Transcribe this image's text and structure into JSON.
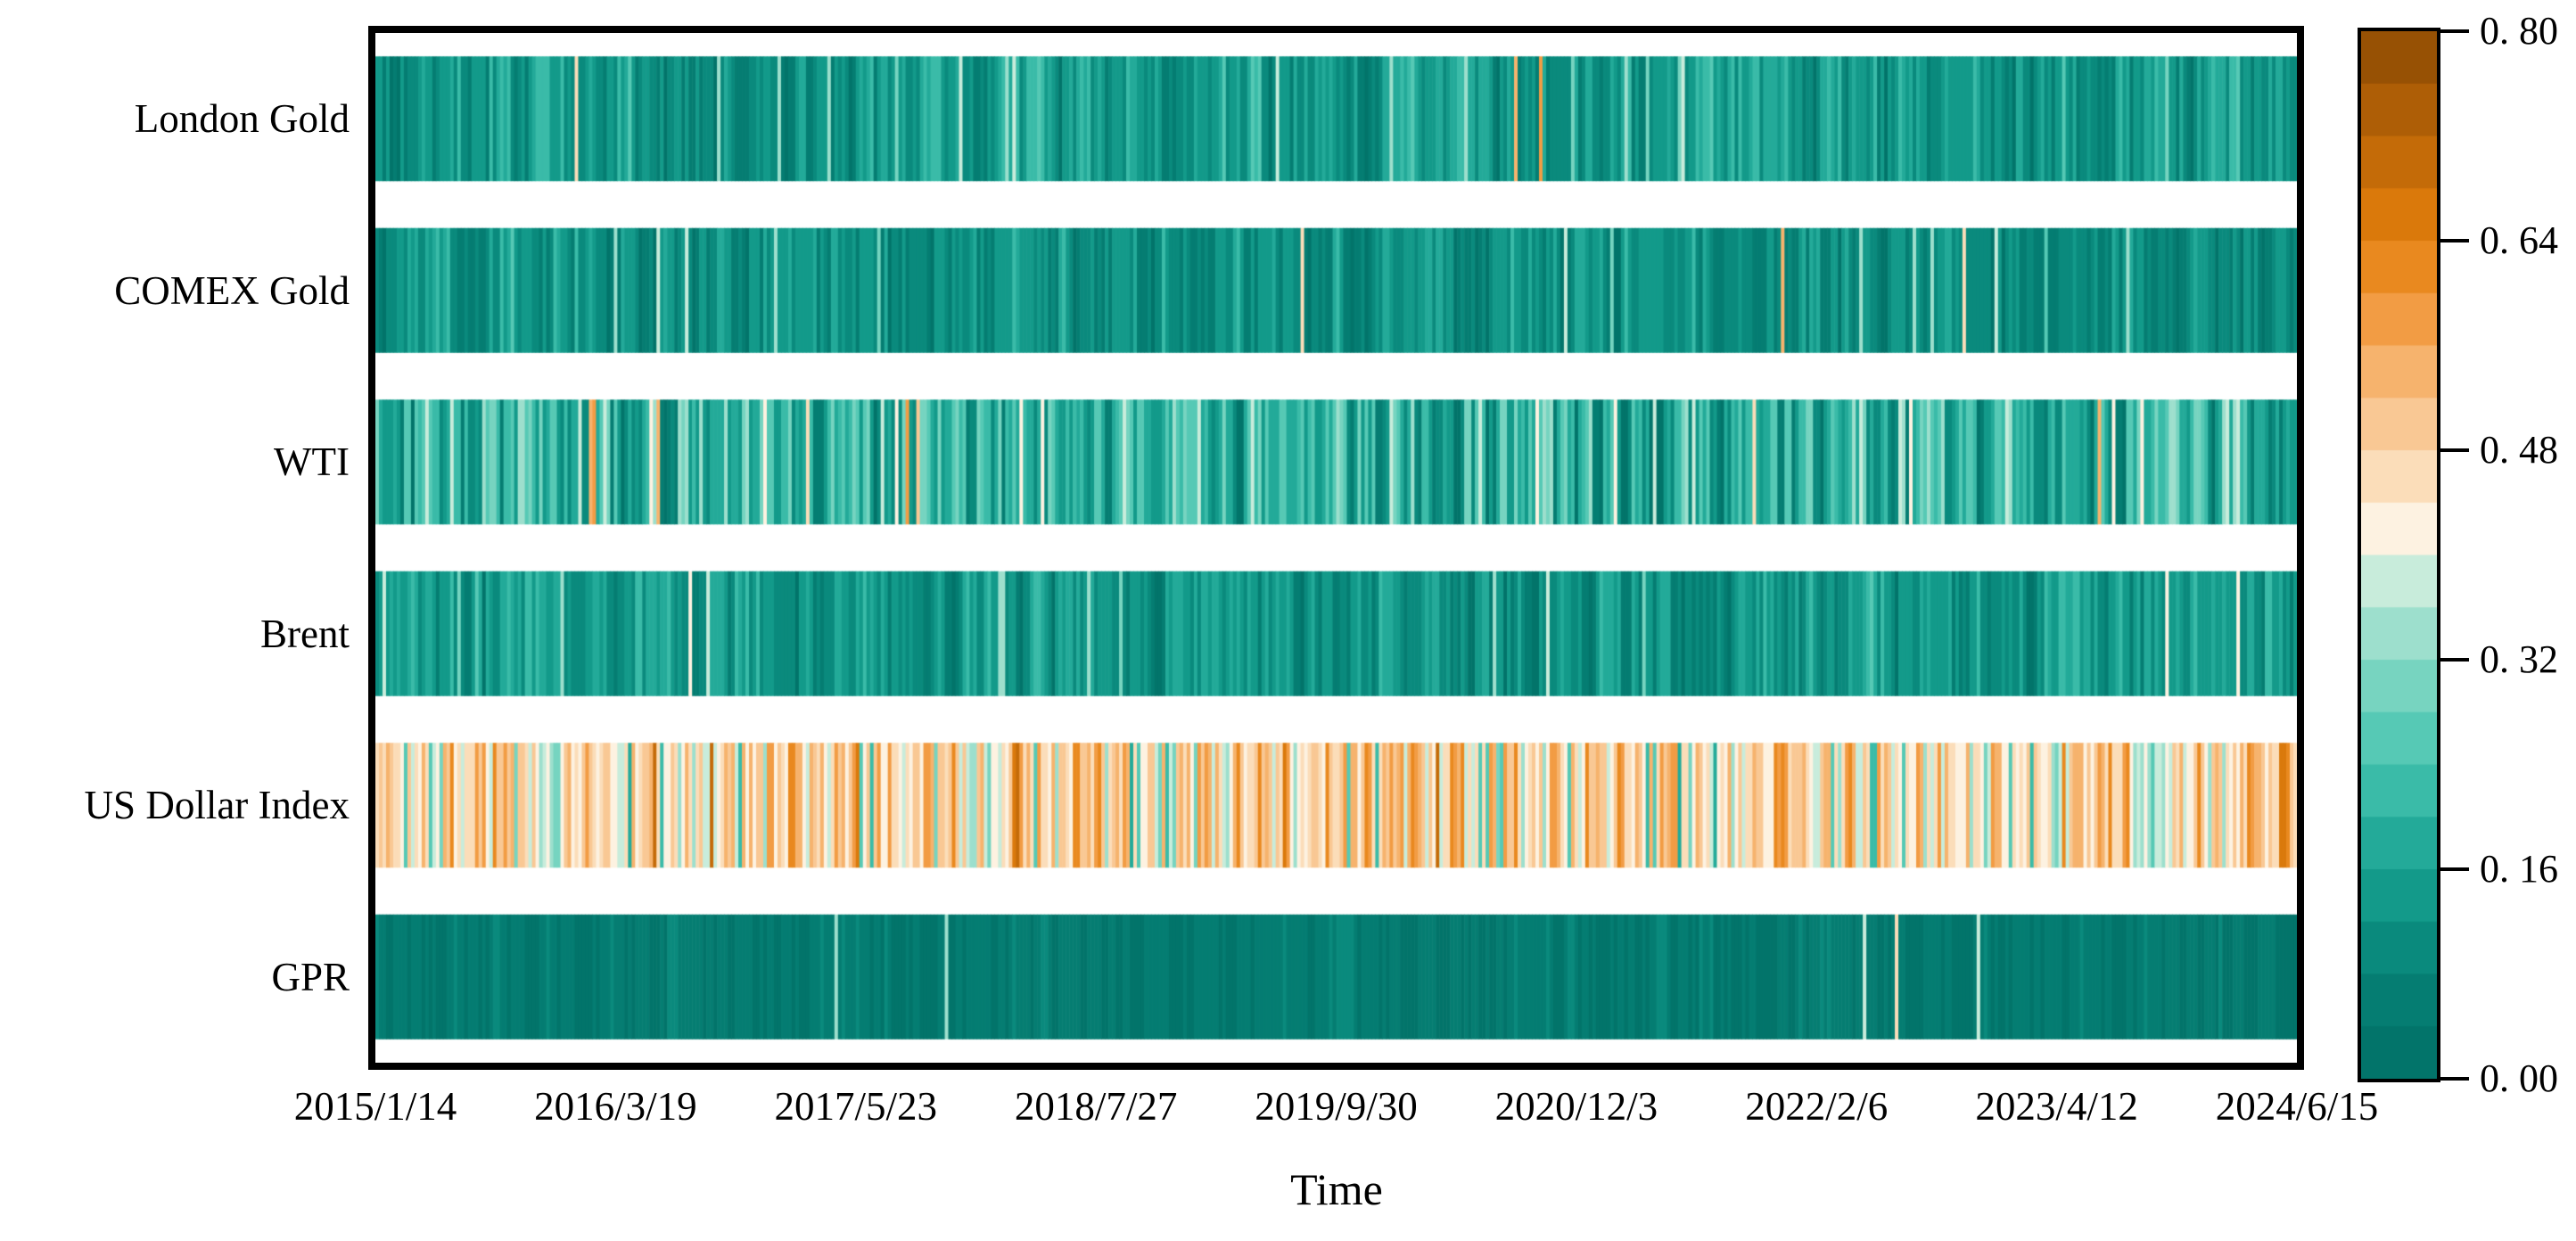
{
  "figure": {
    "xlabel": "Time"
  },
  "y_axis": {
    "labels": [
      "London Gold",
      "COMEX Gold",
      "WTI",
      "Brent",
      "US Dollar Index",
      "GPR"
    ]
  },
  "x_axis": {
    "tick_labels": [
      "2015/1/14",
      "2016/3/19",
      "2017/5/23",
      "2018/7/27",
      "2019/9/30",
      "2020/12/3",
      "2022/2/6",
      "2023/4/12",
      "2024/6/15"
    ]
  },
  "colorbar": {
    "tick_labels": [
      "0. 80",
      "0. 64",
      "0. 48",
      "0. 32",
      "0. 16",
      "0. 00"
    ],
    "tick_values": [
      0.8,
      0.64,
      0.48,
      0.32,
      0.16,
      0.0
    ],
    "vmin": 0.0,
    "vmax": 0.8,
    "discrete_levels": 20
  },
  "chart_data": {
    "type": "heatmap",
    "title": "",
    "xlabel": "Time",
    "ylabel": "",
    "x_tick_labels": [
      "2015/1/14",
      "2016/3/19",
      "2017/5/23",
      "2018/7/27",
      "2019/9/30",
      "2020/12/3",
      "2022/2/6",
      "2023/4/12",
      "2024/6/15"
    ],
    "x_range_dates": [
      "2015/1/14",
      "2024/6/15"
    ],
    "categories": [
      "London Gold",
      "COMEX Gold",
      "WTI",
      "Brent",
      "US Dollar Index",
      "GPR"
    ],
    "value_range": [
      0.0,
      0.8
    ],
    "legend_position": "right-colorbar",
    "grid": false,
    "n_points_rendered": 540,
    "colormap_stops": [
      [
        0.0,
        "#006f66"
      ],
      [
        0.08,
        "#068276"
      ],
      [
        0.16,
        "#17a291"
      ],
      [
        0.24,
        "#45c3af"
      ],
      [
        0.32,
        "#87d9c6"
      ],
      [
        0.38,
        "#c8ecdb"
      ],
      [
        0.4,
        "#eff7ec"
      ],
      [
        0.42,
        "#fdf2e1"
      ],
      [
        0.46,
        "#fbddb9"
      ],
      [
        0.52,
        "#f8be82"
      ],
      [
        0.58,
        "#f29c44"
      ],
      [
        0.64,
        "#e5800d"
      ],
      [
        0.72,
        "#b96407"
      ],
      [
        0.8,
        "#8c4b03"
      ]
    ],
    "rows": [
      {
        "label": "London Gold",
        "seed": 101,
        "mean": 0.135,
        "std": 0.055,
        "accent_prob": 0.04,
        "accent_range": [
          0.28,
          0.42
        ],
        "spike_prob": 0.006,
        "spike_range": [
          0.44,
          0.58
        ]
      },
      {
        "label": "COMEX Gold",
        "seed": 202,
        "mean": 0.115,
        "std": 0.05,
        "accent_prob": 0.03,
        "accent_range": [
          0.26,
          0.4
        ],
        "spike_prob": 0.004,
        "spike_range": [
          0.44,
          0.56
        ]
      },
      {
        "label": "WTI",
        "seed": 303,
        "mean": 0.19,
        "std": 0.09,
        "accent_prob": 0.055,
        "accent_range": [
          0.32,
          0.46
        ],
        "spike_prob": 0.012,
        "spike_range": [
          0.48,
          0.62
        ]
      },
      {
        "label": "Brent",
        "seed": 404,
        "mean": 0.125,
        "std": 0.05,
        "accent_prob": 0.025,
        "accent_range": [
          0.28,
          0.42
        ],
        "spike_prob": 0.003,
        "spike_range": [
          0.5,
          0.66
        ]
      },
      {
        "label": "US Dollar Index",
        "seed": 505,
        "mean": 0.47,
        "std": 0.08,
        "accent_prob": 0.07,
        "accent_range": [
          0.18,
          0.3
        ],
        "spike_prob": 0.015,
        "spike_range": [
          0.6,
          0.72
        ]
      },
      {
        "label": "GPR",
        "seed": 606,
        "mean": 0.05,
        "std": 0.022,
        "accent_prob": 0.012,
        "accent_range": [
          0.3,
          0.41
        ],
        "spike_prob": 0.002,
        "spike_range": [
          0.4,
          0.46
        ]
      }
    ]
  }
}
